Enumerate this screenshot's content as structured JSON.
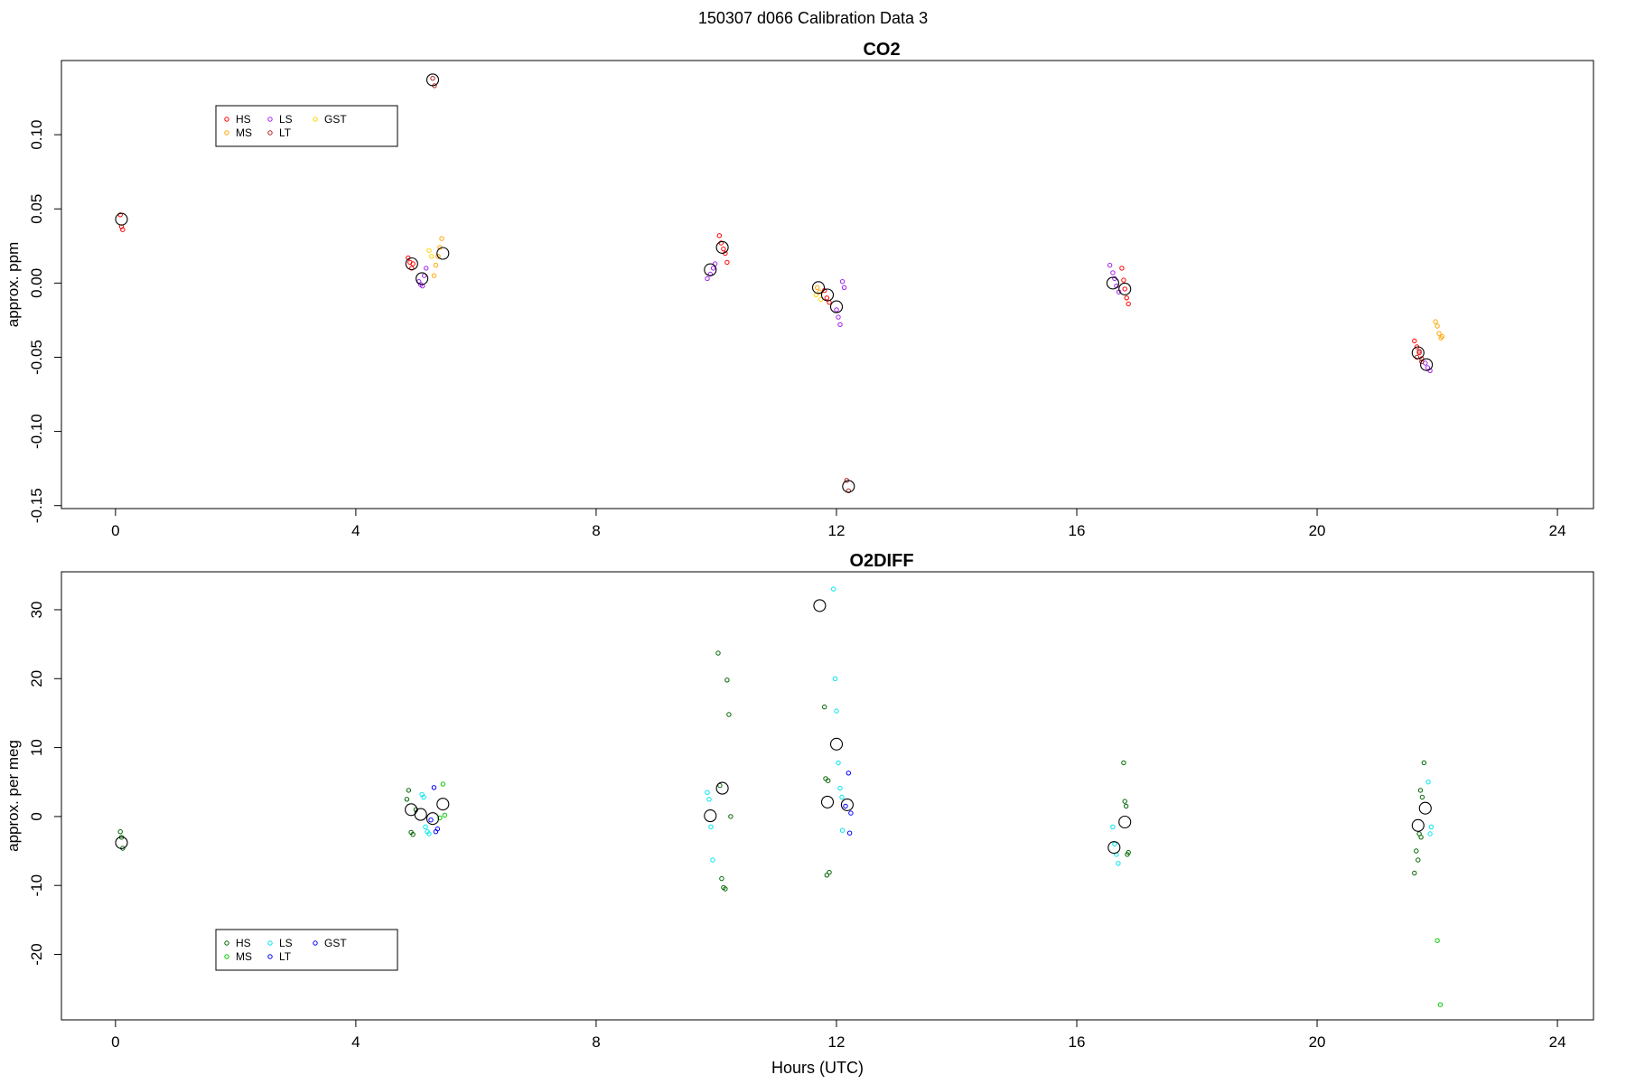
{
  "figure_title": "150307   d066   Calibration Data 3",
  "chart_data": [
    {
      "type": "scatter",
      "title": "CO2",
      "xlabel": "",
      "ylabel": "approx. ppm",
      "xlim": [
        -0.9,
        24.6
      ],
      "ylim": [
        -0.152,
        0.15
      ],
      "xticks": [
        0,
        4,
        8,
        12,
        16,
        20,
        24
      ],
      "yticks": [
        -0.15,
        -0.1,
        -0.05,
        0.0,
        0.05,
        0.1
      ],
      "ytick_labels": [
        "-0.15",
        "-0.10",
        "-0.05",
        "0.00",
        "0.05",
        "0.10"
      ],
      "legend": {
        "placement": "top-left",
        "entries": [
          "HS",
          "MS",
          "LS",
          "LT",
          "GST"
        ]
      },
      "series": [
        {
          "name": "HS",
          "color": "#ff0000",
          "points": [
            [
              0.08,
              0.046
            ],
            [
              0.1,
              0.038
            ],
            [
              0.12,
              0.036
            ],
            [
              4.87,
              0.017
            ],
            [
              4.9,
              0.014
            ],
            [
              4.93,
              0.01
            ],
            [
              4.95,
              0.013
            ],
            [
              10.05,
              0.032
            ],
            [
              10.08,
              0.027
            ],
            [
              10.12,
              0.023
            ],
            [
              10.15,
              0.02
            ],
            [
              10.18,
              0.014
            ],
            [
              11.8,
              -0.005
            ],
            [
              11.84,
              -0.01
            ],
            [
              11.88,
              -0.013
            ],
            [
              16.75,
              0.01
            ],
            [
              16.78,
              0.002
            ],
            [
              16.8,
              -0.004
            ],
            [
              16.83,
              -0.01
            ],
            [
              16.86,
              -0.014
            ],
            [
              21.62,
              -0.039
            ],
            [
              21.66,
              -0.043
            ],
            [
              21.7,
              -0.047
            ],
            [
              21.74,
              -0.051
            ]
          ]
        },
        {
          "name": "MS",
          "color": "#ffa500",
          "points": [
            [
              5.3,
              0.005
            ],
            [
              5.33,
              0.012
            ],
            [
              5.37,
              0.018
            ],
            [
              5.4,
              0.024
            ],
            [
              5.43,
              0.03
            ],
            [
              11.68,
              -0.003
            ],
            [
              11.72,
              -0.006
            ],
            [
              21.97,
              -0.026
            ],
            [
              22.0,
              -0.029
            ],
            [
              22.03,
              -0.034
            ],
            [
              22.06,
              -0.037
            ],
            [
              22.08,
              -0.036
            ]
          ]
        },
        {
          "name": "LS",
          "color": "#a020f0",
          "points": [
            [
              5.05,
              0.001
            ],
            [
              5.08,
              -0.001
            ],
            [
              5.11,
              -0.002
            ],
            [
              5.14,
              0.005
            ],
            [
              5.17,
              0.01
            ],
            [
              9.85,
              0.003
            ],
            [
              9.9,
              0.006
            ],
            [
              9.95,
              0.01
            ],
            [
              9.98,
              0.013
            ],
            [
              12.0,
              -0.018
            ],
            [
              12.03,
              -0.023
            ],
            [
              12.06,
              -0.028
            ],
            [
              12.1,
              0.001
            ],
            [
              12.13,
              -0.003
            ],
            [
              16.55,
              0.012
            ],
            [
              16.6,
              0.007
            ],
            [
              16.63,
              0.003
            ],
            [
              16.66,
              -0.002
            ],
            [
              16.7,
              -0.006
            ],
            [
              21.8,
              -0.054
            ],
            [
              21.84,
              -0.057
            ],
            [
              21.88,
              -0.059
            ]
          ]
        },
        {
          "name": "LT",
          "color": "#b22222",
          "points": [
            [
              5.28,
              0.138
            ],
            [
              5.31,
              0.133
            ],
            [
              12.17,
              -0.133
            ],
            [
              12.2,
              -0.14
            ],
            [
              21.66,
              -0.05
            ],
            [
              21.7,
              -0.046
            ],
            [
              21.74,
              -0.053
            ]
          ]
        },
        {
          "name": "GST",
          "color": "#ffd700",
          "points": [
            [
              5.22,
              0.022
            ],
            [
              5.26,
              0.018
            ],
            [
              11.66,
              -0.008
            ],
            [
              11.74,
              -0.011
            ]
          ]
        }
      ],
      "means": [
        [
          0.1,
          0.043
        ],
        [
          4.93,
          0.013
        ],
        [
          5.1,
          0.003
        ],
        [
          5.28,
          0.137
        ],
        [
          5.45,
          0.02
        ],
        [
          9.9,
          0.009
        ],
        [
          10.1,
          0.024
        ],
        [
          11.7,
          -0.003
        ],
        [
          11.85,
          -0.008
        ],
        [
          12.0,
          -0.016
        ],
        [
          12.2,
          -0.137
        ],
        [
          16.6,
          0.0
        ],
        [
          16.8,
          -0.004
        ],
        [
          21.68,
          -0.047
        ],
        [
          21.82,
          -0.055
        ]
      ]
    },
    {
      "type": "scatter",
      "title": "O2DIFF",
      "xlabel": "Hours (UTC)",
      "ylabel": "approx. per meg",
      "xlim": [
        -0.9,
        24.6
      ],
      "ylim": [
        -29.5,
        35.5
      ],
      "xticks": [
        0,
        4,
        8,
        12,
        16,
        20,
        24
      ],
      "yticks": [
        -20,
        -10,
        0,
        10,
        20,
        30
      ],
      "ytick_labels": [
        "-20",
        "-10",
        "0",
        "10",
        "20",
        "30"
      ],
      "legend": {
        "placement": "bottom-left",
        "entries": [
          "HS",
          "MS",
          "LS",
          "LT",
          "GST"
        ]
      },
      "series": [
        {
          "name": "HS",
          "color": "#006400",
          "points": [
            [
              0.08,
              -2.2
            ],
            [
              0.1,
              -3.0
            ],
            [
              0.12,
              -4.6
            ],
            [
              4.85,
              2.5
            ],
            [
              4.88,
              3.8
            ],
            [
              4.92,
              -2.3
            ],
            [
              4.95,
              -2.6
            ],
            [
              5.0,
              1.0
            ],
            [
              10.03,
              23.7
            ],
            [
              10.06,
              4.5
            ],
            [
              10.09,
              -9.0
            ],
            [
              10.12,
              -10.3
            ],
            [
              10.15,
              -10.5
            ],
            [
              10.18,
              19.8
            ],
            [
              10.21,
              14.8
            ],
            [
              10.24,
              0.0
            ],
            [
              11.8,
              15.9
            ],
            [
              11.82,
              5.5
            ],
            [
              11.84,
              -8.5
            ],
            [
              11.86,
              5.2
            ],
            [
              11.88,
              -8.1
            ],
            [
              16.78,
              7.8
            ],
            [
              16.8,
              2.2
            ],
            [
              16.82,
              1.5
            ],
            [
              16.84,
              -5.5
            ],
            [
              16.86,
              -5.2
            ],
            [
              21.62,
              -8.2
            ],
            [
              21.65,
              -5.0
            ],
            [
              21.68,
              -6.3
            ],
            [
              21.7,
              -2.5
            ],
            [
              21.73,
              -3.0
            ],
            [
              21.75,
              2.8
            ],
            [
              21.78,
              7.8
            ],
            [
              21.72,
              3.8
            ]
          ]
        },
        {
          "name": "MS",
          "color": "#00cc00",
          "points": [
            [
              5.45,
              4.7
            ],
            [
              5.48,
              0.2
            ],
            [
              5.4,
              -0.2
            ],
            [
              22.0,
              -18.0
            ],
            [
              22.05,
              -27.3
            ]
          ]
        },
        {
          "name": "LS",
          "color": "#00e5ee",
          "points": [
            [
              5.1,
              3.2
            ],
            [
              5.13,
              2.8
            ],
            [
              5.16,
              -1.5
            ],
            [
              5.19,
              -2.2
            ],
            [
              5.22,
              -2.5
            ],
            [
              9.85,
              3.5
            ],
            [
              9.88,
              2.5
            ],
            [
              9.91,
              -1.5
            ],
            [
              9.94,
              -6.3
            ],
            [
              11.95,
              33.0
            ],
            [
              11.98,
              20.0
            ],
            [
              12.0,
              15.3
            ],
            [
              12.03,
              7.8
            ],
            [
              12.06,
              4.1
            ],
            [
              12.09,
              2.8
            ],
            [
              12.1,
              -2.0
            ],
            [
              16.6,
              -1.5
            ],
            [
              16.63,
              -4.0
            ],
            [
              16.66,
              -5.5
            ],
            [
              16.69,
              -6.8
            ],
            [
              21.85,
              5.0
            ],
            [
              21.88,
              -2.5
            ],
            [
              21.9,
              -1.5
            ]
          ]
        },
        {
          "name": "LT",
          "color": "#0000ff",
          "points": [
            [
              5.3,
              4.2
            ],
            [
              5.33,
              -2.2
            ],
            [
              5.36,
              -1.8
            ],
            [
              12.2,
              6.3
            ],
            [
              12.22,
              -2.4
            ],
            [
              12.24,
              0.5
            ]
          ]
        },
        {
          "name": "GST",
          "color": "#0000ff",
          "points": [
            [
              5.25,
              -0.5
            ],
            [
              12.15,
              1.5
            ]
          ]
        }
      ],
      "means": [
        [
          0.1,
          -3.8
        ],
        [
          4.92,
          1.0
        ],
        [
          5.08,
          0.3
        ],
        [
          5.28,
          -0.3
        ],
        [
          5.45,
          1.8
        ],
        [
          9.9,
          0.1
        ],
        [
          10.1,
          4.1
        ],
        [
          11.72,
          30.6
        ],
        [
          11.85,
          2.1
        ],
        [
          12.0,
          10.5
        ],
        [
          12.18,
          1.7
        ],
        [
          16.62,
          -4.5
        ],
        [
          16.8,
          -0.8
        ],
        [
          21.68,
          -1.3
        ],
        [
          21.8,
          1.2
        ]
      ]
    }
  ]
}
